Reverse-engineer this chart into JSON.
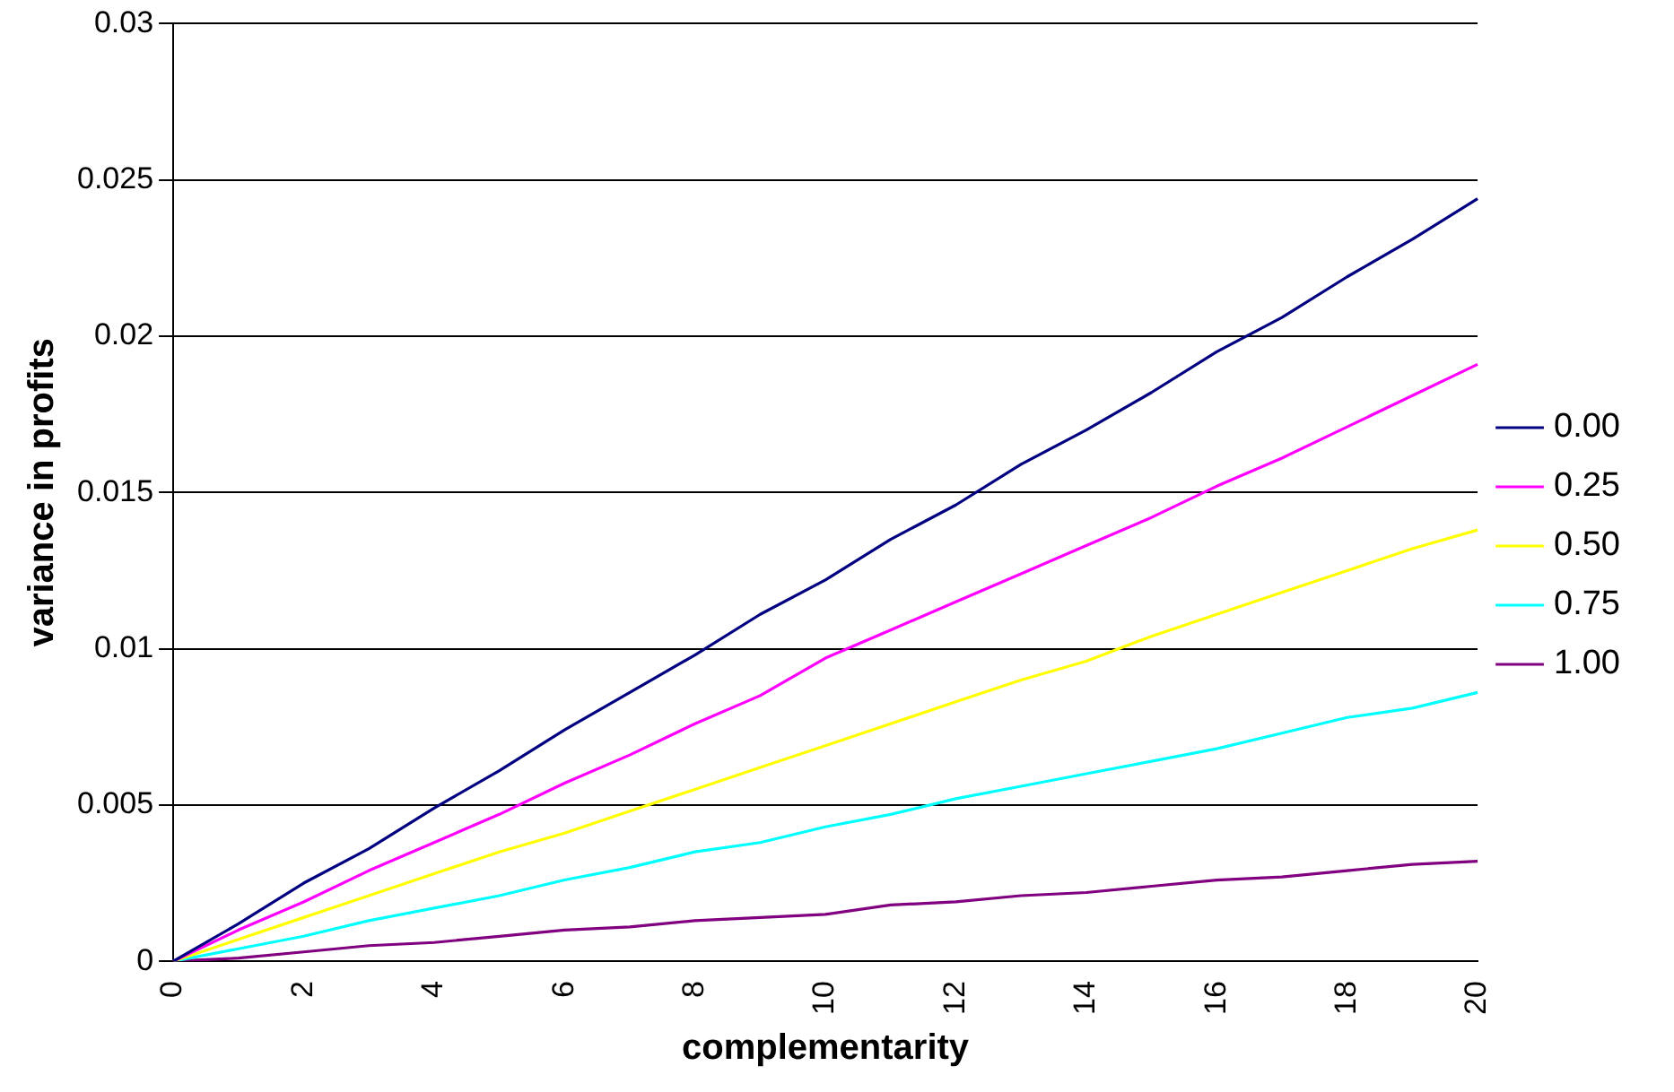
{
  "chart_data": {
    "type": "line",
    "xlabel": "complementarity",
    "ylabel": "variance in profits",
    "categories": [
      "0",
      null,
      "2",
      null,
      "4",
      null,
      "6",
      null,
      "8",
      null,
      "10",
      null,
      "12",
      null,
      "14",
      null,
      "16",
      null,
      "18",
      null,
      "20"
    ],
    "series": [
      {
        "name": "0.00",
        "color": "#000080",
        "values": [
          0,
          0.0012,
          0.0025,
          0.0036,
          0.0049,
          0.0061,
          0.0074,
          0.0086,
          0.0098,
          0.0111,
          0.0122,
          0.0135,
          0.0146,
          0.0159,
          0.017,
          0.0182,
          0.0195,
          0.0206,
          0.0219,
          0.0231,
          0.0244
        ]
      },
      {
        "name": "0.25",
        "color": "#ff00ff",
        "values": [
          0,
          0.001,
          0.0019,
          0.0029,
          0.0038,
          0.0047,
          0.0057,
          0.0066,
          0.0076,
          0.0085,
          0.0097,
          0.0106,
          0.0115,
          0.0124,
          0.0133,
          0.0142,
          0.0152,
          0.0161,
          0.0171,
          0.0181,
          0.0191
        ]
      },
      {
        "name": "0.50",
        "color": "#ffff00",
        "values": [
          0,
          0.0007,
          0.0014,
          0.0021,
          0.0028,
          0.0035,
          0.0041,
          0.0048,
          0.0055,
          0.0062,
          0.0069,
          0.0076,
          0.0083,
          0.009,
          0.0096,
          0.0104,
          0.0111,
          0.0118,
          0.0125,
          0.0132,
          0.0138
        ]
      },
      {
        "name": "0.75",
        "color": "#00ffff",
        "values": [
          0,
          0.0004,
          0.0008,
          0.0013,
          0.0017,
          0.0021,
          0.0026,
          0.003,
          0.0035,
          0.0038,
          0.0043,
          0.0047,
          0.0052,
          0.0056,
          0.006,
          0.0064,
          0.0068,
          0.0073,
          0.0078,
          0.0081,
          0.0086
        ]
      },
      {
        "name": "1.00",
        "color": "#800080",
        "values": [
          0,
          0.0001,
          0.0003,
          0.0005,
          0.0006,
          0.0008,
          0.001,
          0.0011,
          0.0013,
          0.0014,
          0.0015,
          0.0018,
          0.0019,
          0.0021,
          0.0022,
          0.0024,
          0.0026,
          0.0027,
          0.0029,
          0.0031,
          0.0032
        ]
      }
    ],
    "ylim": [
      0,
      0.03
    ],
    "yticks": [
      0,
      0.005,
      0.01,
      0.015,
      0.02,
      0.025,
      0.03
    ],
    "grid": "y",
    "legend": "right",
    "marker": "none",
    "line_style": "solid"
  }
}
